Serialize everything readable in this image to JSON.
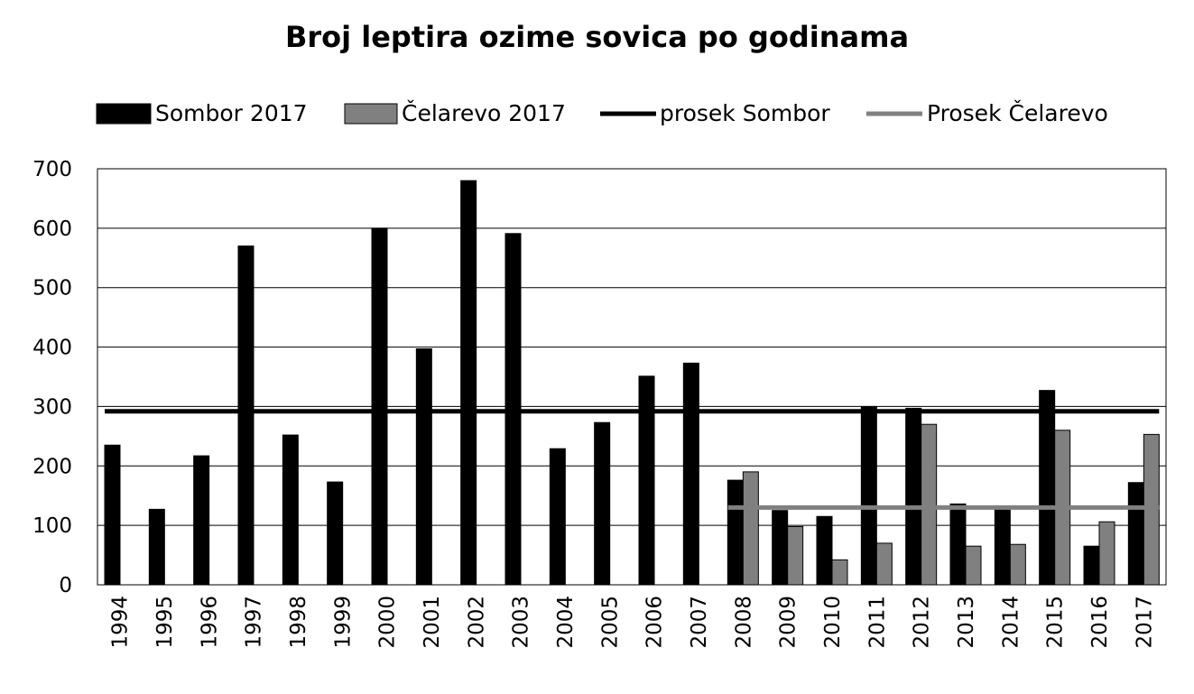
{
  "chart_data": {
    "type": "bar",
    "title": "Broj leptira ozime sovica po godinama",
    "xlabel": "",
    "ylabel": "",
    "ylim": [
      0,
      700
    ],
    "yticks": [
      0,
      100,
      200,
      300,
      400,
      500,
      600,
      700
    ],
    "grid": true,
    "legend_position": "top",
    "categories": [
      "1994",
      "1995",
      "1996",
      "1997",
      "1998",
      "1999",
      "2000",
      "2001",
      "2002",
      "2003",
      "2004",
      "2005",
      "2006",
      "2007",
      "2008",
      "2009",
      "2010",
      "2011",
      "2012",
      "2013",
      "2014",
      "2015",
      "2016",
      "2017"
    ],
    "series": [
      {
        "name": "Sombor 2017",
        "kind": "bar",
        "color": "#000000",
        "values": [
          235,
          127,
          217,
          570,
          252,
          173,
          600,
          397,
          680,
          591,
          229,
          273,
          351,
          373,
          176,
          125,
          115,
          300,
          297,
          136,
          127,
          327,
          65,
          172
        ]
      },
      {
        "name": "Čelarevo 2017",
        "kind": "bar",
        "color": "#808080",
        "values": [
          null,
          null,
          null,
          null,
          null,
          null,
          null,
          null,
          null,
          null,
          null,
          null,
          null,
          null,
          190,
          98,
          42,
          70,
          270,
          65,
          68,
          260,
          106,
          253
        ]
      }
    ],
    "reference_lines": [
      {
        "name": "prosek Sombor",
        "color": "#000000",
        "value": 292,
        "from": "1994",
        "to": "2017"
      },
      {
        "name": "Prosek Čelarevo",
        "color": "#808080",
        "value": 130,
        "from": "2008",
        "to": "2017"
      }
    ]
  }
}
